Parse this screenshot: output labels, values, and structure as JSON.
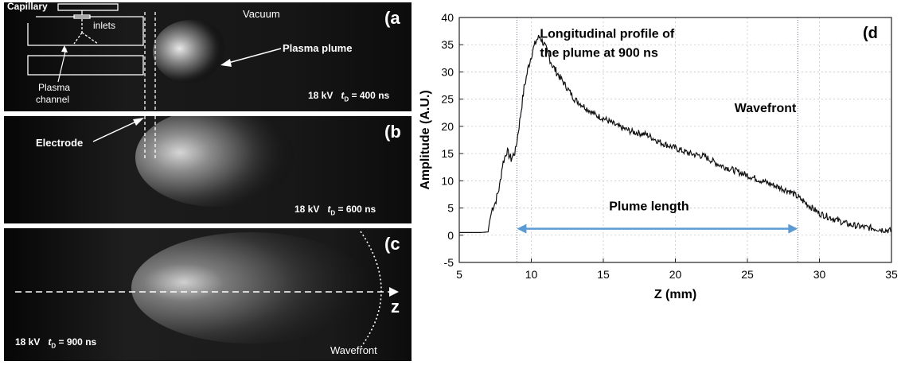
{
  "panels": {
    "a": {
      "label": "(a",
      "capillary": "Capillary",
      "inlets": "inlets",
      "vacuum": "Vacuum",
      "plasma_plume": "Plasma plume",
      "plasma_channel_l1": "Plasma",
      "plasma_channel_l2": "channel",
      "voltage": "18 kV",
      "t_symbol": "t",
      "t_sub": "D",
      "t_value": " = 400 ns"
    },
    "b": {
      "label": "(b",
      "electrode": "Electrode",
      "voltage": "18 kV",
      "t_symbol": "t",
      "t_sub": "D",
      "t_value": " = 600 ns"
    },
    "c": {
      "label": "(c",
      "z_axis": "z",
      "wavefront": "Wavefront",
      "voltage": "18 kV",
      "t_symbol": "t",
      "t_sub": "D",
      "t_value": " = 900 ns"
    }
  },
  "chart_data": {
    "type": "line",
    "panel_label": "(d",
    "xlabel": "Z (mm)",
    "ylabel": "Amplitude (A.U.)",
    "xlim": [
      5,
      35
    ],
    "ylim": [
      -5,
      40
    ],
    "xticks": [
      5,
      10,
      15,
      20,
      25,
      30,
      35
    ],
    "yticks": [
      -5,
      0,
      5,
      10,
      15,
      20,
      25,
      30,
      35,
      40
    ],
    "grid": true,
    "line_color": "#111111",
    "annotations": {
      "profile_line1": "Longitudinal profile of",
      "profile_line2": "the plume at 900 ns",
      "wavefront": "Wavefront",
      "plume_length": "Plume length"
    },
    "plume_length_range": [
      9,
      28.5
    ],
    "plume_length_y": 1.2,
    "arrow_color": "#5b9bd5",
    "marker_lines_x": [
      9,
      28.5
    ],
    "series": [
      {
        "x": [
          5.0,
          6.5,
          7.0,
          7.1,
          7.3,
          7.5,
          7.8,
          8.0,
          8.3,
          8.6,
          8.9,
          9.2,
          9.5,
          9.8,
          10.1,
          10.4,
          10.6,
          10.9,
          11.2,
          11.5,
          12.0,
          12.5,
          13.0,
          13.5,
          14.0,
          14.5,
          15.0,
          16.0,
          17.0,
          18.0,
          19.0,
          20.0,
          21.0,
          22.0,
          23.0,
          24.0,
          25.0,
          26.0,
          27.0,
          28.0,
          28.5,
          29.0,
          30.0,
          31.0,
          32.0,
          33.0,
          34.0,
          35.0
        ],
        "y": [
          0.5,
          0.5,
          0.6,
          2.5,
          5.0,
          6.0,
          9.0,
          13.0,
          15.5,
          14.0,
          15.5,
          21.0,
          27.0,
          31.0,
          34.0,
          36.0,
          36.5,
          35.0,
          33.0,
          31.0,
          29.0,
          27.0,
          25.0,
          24.0,
          23.0,
          22.0,
          21.5,
          20.0,
          19.0,
          18.5,
          17.0,
          16.0,
          15.0,
          14.5,
          13.0,
          12.0,
          11.0,
          10.0,
          9.0,
          8.0,
          7.0,
          6.0,
          4.0,
          3.0,
          2.0,
          1.5,
          1.2,
          0.8
        ]
      }
    ]
  }
}
